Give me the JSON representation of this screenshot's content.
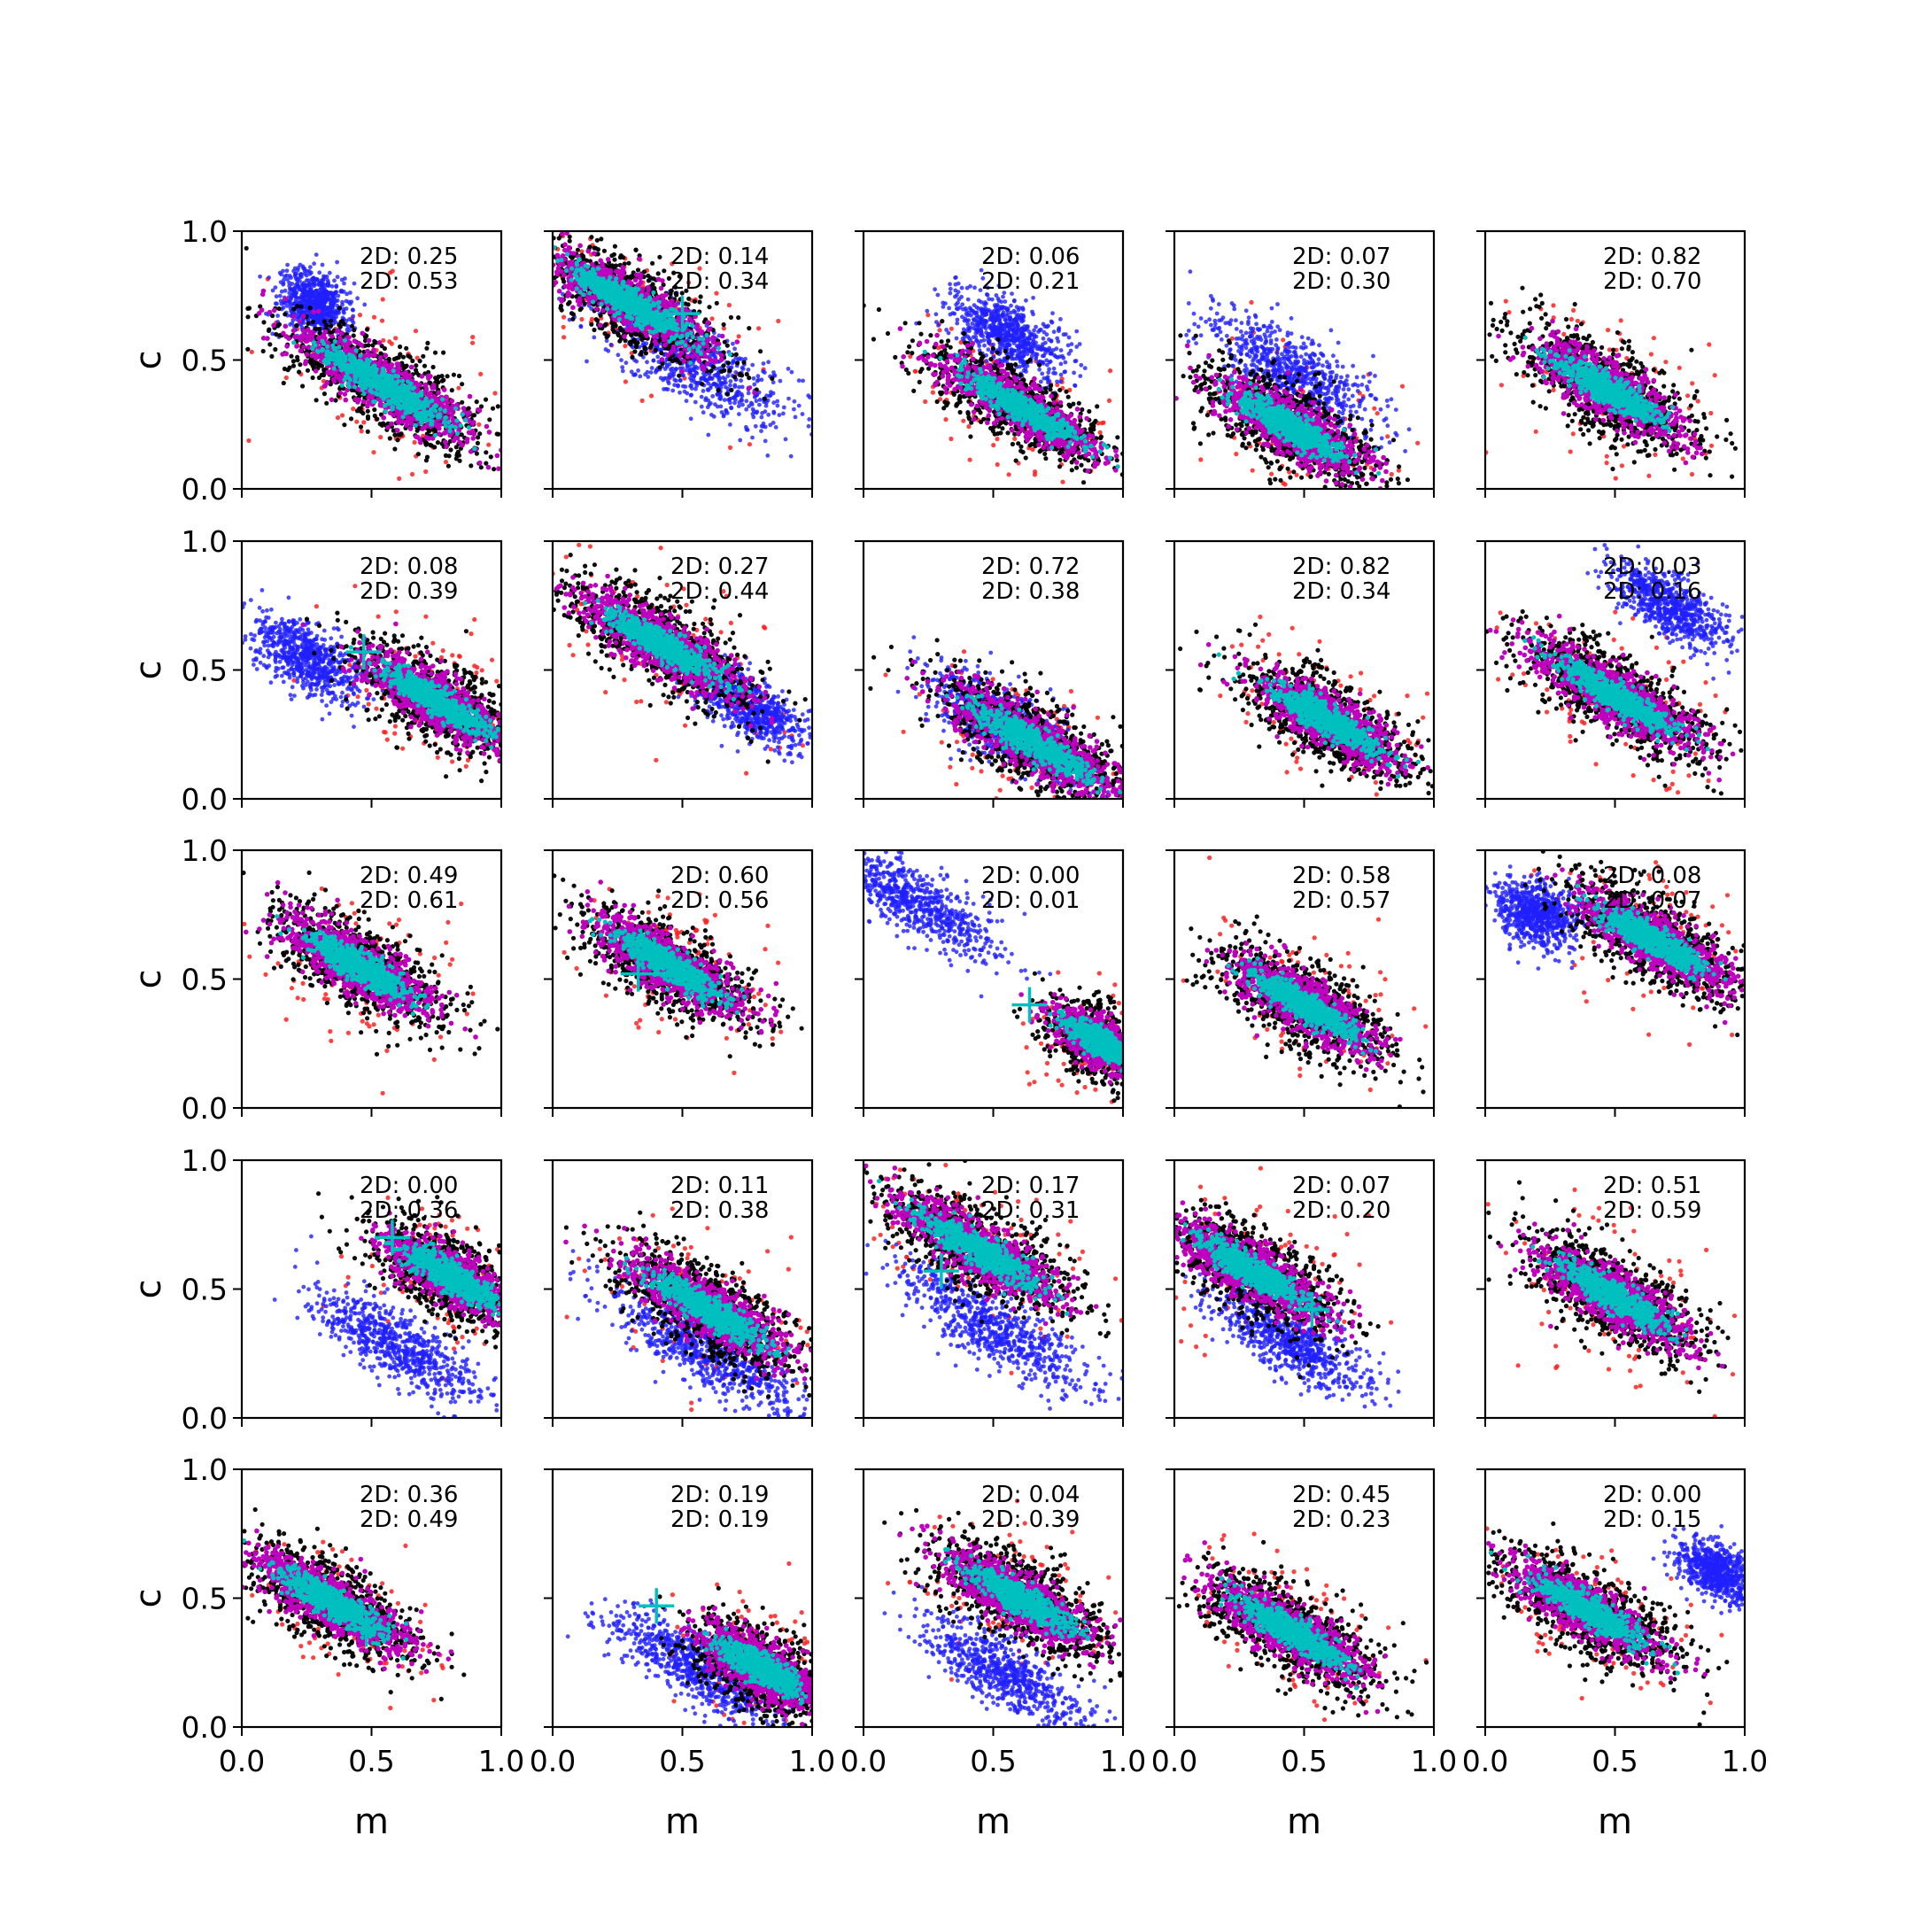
{
  "colors": {
    "blue": "#1f1fff",
    "red": "#ff2020",
    "black": "#000000",
    "magenta": "#bf00bf",
    "cyan": "#00bfbf"
  },
  "chart_data": {
    "type": "scatter",
    "layout": "5x5 grid of panels",
    "xlabel": "m",
    "ylabel": "c",
    "xlim": [
      0,
      1
    ],
    "ylim": [
      0,
      1
    ],
    "xticks": [
      "0.0",
      "0.5",
      "1.0"
    ],
    "yticks": [
      "0.0",
      "0.5",
      "1.0"
    ],
    "grid": false,
    "series_colors": [
      "blue",
      "red",
      "black",
      "magenta",
      "cyan"
    ],
    "marker_color": "cyan",
    "panels": [
      {
        "ann1": "2D: 0.25",
        "ann2": "2D: 0.53",
        "marker": null,
        "blue": {
          "m": 0.28,
          "c": 0.72,
          "s": 0.16,
          "w": 0.06
        },
        "main": {
          "m": 0.55,
          "c": 0.4,
          "s": 0.55,
          "w": 0.07
        }
      },
      {
        "ann1": "2D: 0.14",
        "ann2": "2D: 0.34",
        "marker": [
          0.5,
          0.68
        ],
        "blue": {
          "m": 0.55,
          "c": 0.48,
          "s": 0.5,
          "w": 0.07
        },
        "main": {
          "m": 0.3,
          "c": 0.72,
          "s": 0.5,
          "w": 0.07
        }
      },
      {
        "ann1": "2D: 0.06",
        "ann2": "2D: 0.21",
        "marker": null,
        "blue": {
          "m": 0.55,
          "c": 0.6,
          "s": 0.3,
          "w": 0.06
        },
        "main": {
          "m": 0.6,
          "c": 0.32,
          "s": 0.5,
          "w": 0.06
        }
      },
      {
        "ann1": "2D: 0.07",
        "ann2": "2D: 0.30",
        "marker": null,
        "blue": {
          "m": 0.45,
          "c": 0.45,
          "s": 0.45,
          "w": 0.07
        },
        "main": {
          "m": 0.45,
          "c": 0.24,
          "s": 0.45,
          "w": 0.07
        }
      },
      {
        "ann1": "2D: 0.82",
        "ann2": "2D: 0.70",
        "marker": null,
        "blue": null,
        "main": {
          "m": 0.48,
          "c": 0.38,
          "s": 0.45,
          "w": 0.07
        }
      },
      {
        "ann1": "2D: 0.08",
        "ann2": "2D: 0.39",
        "marker": [
          0.47,
          0.57
        ],
        "blue": {
          "m": 0.25,
          "c": 0.55,
          "s": 0.3,
          "w": 0.06
        },
        "main": {
          "m": 0.75,
          "c": 0.38,
          "s": 0.45,
          "w": 0.07
        }
      },
      {
        "ann1": "2D: 0.27",
        "ann2": "2D: 0.44",
        "marker": [
          0.42,
          0.58
        ],
        "blue": {
          "m": 0.75,
          "c": 0.36,
          "s": 0.3,
          "w": 0.05
        },
        "main": {
          "m": 0.42,
          "c": 0.6,
          "s": 0.5,
          "w": 0.07
        }
      },
      {
        "ann1": "2D: 0.72",
        "ann2": "2D: 0.38",
        "marker": [
          0.55,
          0.26
        ],
        "blue": {
          "m": 0.55,
          "c": 0.28,
          "s": 0.4,
          "w": 0.06
        },
        "main": {
          "m": 0.65,
          "c": 0.22,
          "s": 0.5,
          "w": 0.07
        }
      },
      {
        "ann1": "2D: 0.82",
        "ann2": "2D: 0.34",
        "marker": [
          0.52,
          0.38
        ],
        "blue": null,
        "main": {
          "m": 0.6,
          "c": 0.3,
          "s": 0.45,
          "w": 0.07
        }
      },
      {
        "ann1": "2D: 0.03",
        "ann2": "2D: 0.16",
        "marker": null,
        "blue": {
          "m": 0.7,
          "c": 0.75,
          "s": 0.3,
          "w": 0.05
        },
        "main": {
          "m": 0.5,
          "c": 0.4,
          "s": 0.5,
          "w": 0.07
        }
      },
      {
        "ann1": "2D: 0.49",
        "ann2": "2D: 0.61",
        "marker": null,
        "blue": null,
        "main": {
          "m": 0.45,
          "c": 0.55,
          "s": 0.45,
          "w": 0.07
        }
      },
      {
        "ann1": "2D: 0.60",
        "ann2": "2D: 0.56",
        "marker": [
          0.33,
          0.52
        ],
        "blue": null,
        "main": {
          "m": 0.45,
          "c": 0.55,
          "s": 0.45,
          "w": 0.07
        }
      },
      {
        "ann1": "2D: 0.00",
        "ann2": "2D: 0.01",
        "marker": [
          0.64,
          0.4
        ],
        "blue": {
          "m": 0.2,
          "c": 0.8,
          "s": 0.45,
          "w": 0.06
        },
        "main": {
          "m": 0.92,
          "c": 0.25,
          "s": 0.3,
          "w": 0.06
        }
      },
      {
        "ann1": "2D: 0.58",
        "ann2": "2D: 0.57",
        "marker": null,
        "blue": null,
        "main": {
          "m": 0.5,
          "c": 0.4,
          "s": 0.45,
          "w": 0.07
        }
      },
      {
        "ann1": "2D: 0.08",
        "ann2": "2D: 0.07",
        "marker": null,
        "blue": {
          "m": 0.2,
          "c": 0.75,
          "s": 0.2,
          "w": 0.06
        },
        "main": {
          "m": 0.65,
          "c": 0.65,
          "s": 0.45,
          "w": 0.07
        }
      },
      {
        "ann1": "2D: 0.00",
        "ann2": "2D: 0.36",
        "marker": [
          0.58,
          0.7
        ],
        "blue": {
          "m": 0.6,
          "c": 0.28,
          "s": 0.45,
          "w": 0.06
        },
        "main": {
          "m": 0.8,
          "c": 0.55,
          "s": 0.4,
          "w": 0.07
        }
      },
      {
        "ann1": "2D: 0.11",
        "ann2": "2D: 0.38",
        "marker": null,
        "blue": {
          "m": 0.6,
          "c": 0.25,
          "s": 0.5,
          "w": 0.06
        },
        "main": {
          "m": 0.6,
          "c": 0.42,
          "s": 0.5,
          "w": 0.07
        }
      },
      {
        "ann1": "2D: 0.17",
        "ann2": "2D: 0.31",
        "marker": [
          0.3,
          0.57
        ],
        "blue": {
          "m": 0.5,
          "c": 0.35,
          "s": 0.5,
          "w": 0.06
        },
        "main": {
          "m": 0.45,
          "c": 0.65,
          "s": 0.5,
          "w": 0.07
        }
      },
      {
        "ann1": "2D: 0.07",
        "ann2": "2D: 0.20",
        "marker": [
          0.53,
          0.42
        ],
        "blue": {
          "m": 0.45,
          "c": 0.3,
          "s": 0.4,
          "w": 0.06
        },
        "main": {
          "m": 0.3,
          "c": 0.57,
          "s": 0.45,
          "w": 0.07
        }
      },
      {
        "ann1": "2D: 0.51",
        "ann2": "2D: 0.59",
        "marker": null,
        "blue": null,
        "main": {
          "m": 0.5,
          "c": 0.47,
          "s": 0.45,
          "w": 0.07
        }
      },
      {
        "ann1": "2D: 0.36",
        "ann2": "2D: 0.49",
        "marker": [
          0.48,
          0.38
        ],
        "blue": null,
        "main": {
          "m": 0.35,
          "c": 0.48,
          "s": 0.45,
          "w": 0.07
        }
      },
      {
        "ann1": "2D: 0.19",
        "ann2": "2D: 0.19",
        "marker": [
          0.4,
          0.47
        ],
        "blue": {
          "m": 0.55,
          "c": 0.23,
          "s": 0.45,
          "w": 0.06
        },
        "main": {
          "m": 0.8,
          "c": 0.23,
          "s": 0.35,
          "w": 0.07
        }
      },
      {
        "ann1": "2D: 0.04",
        "ann2": "2D: 0.39",
        "marker": null,
        "blue": {
          "m": 0.55,
          "c": 0.2,
          "s": 0.45,
          "w": 0.06
        },
        "main": {
          "m": 0.6,
          "c": 0.5,
          "s": 0.45,
          "w": 0.07
        }
      },
      {
        "ann1": "2D: 0.45",
        "ann2": "2D: 0.23",
        "marker": null,
        "blue": null,
        "main": {
          "m": 0.45,
          "c": 0.37,
          "s": 0.45,
          "w": 0.07
        }
      },
      {
        "ann1": "2D: 0.00",
        "ann2": "2D: 0.15",
        "marker": null,
        "blue": {
          "m": 0.9,
          "c": 0.6,
          "s": 0.2,
          "w": 0.05
        },
        "main": {
          "m": 0.4,
          "c": 0.45,
          "s": 0.45,
          "w": 0.07
        }
      }
    ]
  }
}
